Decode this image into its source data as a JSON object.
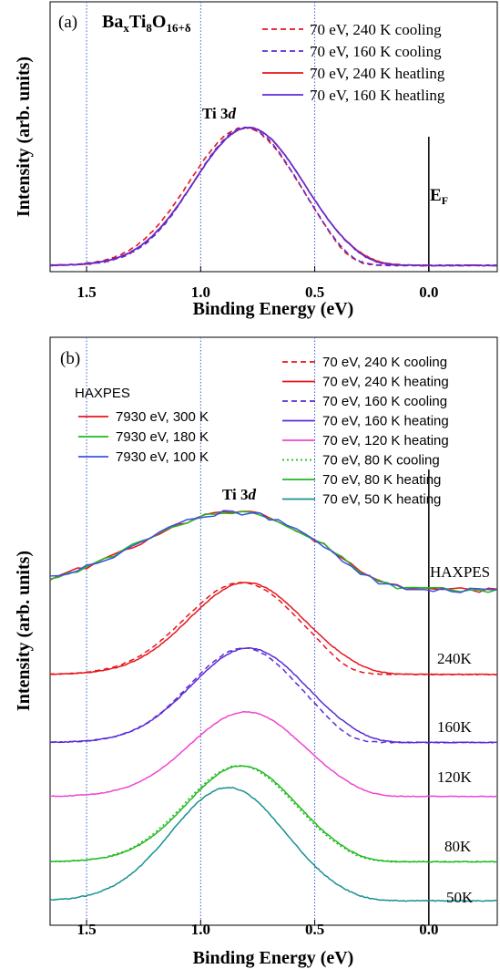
{
  "chart_data": [
    {
      "panel": "(a)",
      "type": "line",
      "title": "BaₓTi₈O₁₆₊δ",
      "title_parts": {
        "a": "Ba",
        "b": "x",
        "c": "Ti",
        "d": "8",
        "e": "O",
        "f": "16+δ"
      },
      "xlabel": "Binding Energy (eV)",
      "ylabel": "Intensity (arb. units)",
      "xlim": [
        1.66,
        -0.3
      ],
      "x_reversed": true,
      "x_ticks": [
        "1.5",
        "1.0",
        "0.5",
        "0.0"
      ],
      "x_tick_values": [
        1.5,
        1.0,
        0.5,
        0.0
      ],
      "reference_lines": [
        1.5,
        1.0,
        0.5
      ],
      "fermi_line": 0.0,
      "peak_label": {
        "main": "Ti 3",
        "italic": "d"
      },
      "fermi_label": {
        "main": "E",
        "sub": "F"
      },
      "legend_position": "top-right",
      "series": [
        {
          "name": "70 eV, 240 K cooling",
          "color": "#e8141b",
          "dash": true,
          "sigma": 0.24,
          "center": 0.81,
          "cutoff": 0.36,
          "edge_width": 0.05
        },
        {
          "name": "70 eV, 160 K cooling",
          "color": "#5b2bd6",
          "dash": true,
          "sigma": 0.23,
          "center": 0.8,
          "cutoff": 0.34,
          "edge_width": 0.05
        },
        {
          "name": "70 eV, 240 K heatling",
          "color": "#e8141b",
          "dash": false,
          "sigma": 0.24,
          "center": 0.79,
          "cutoff": 0.22,
          "edge_width": 0.07
        },
        {
          "name": "70 eV, 160 K heatling",
          "color": "#5b2bd6",
          "dash": false,
          "sigma": 0.24,
          "center": 0.79,
          "cutoff": 0.25,
          "edge_width": 0.06
        }
      ]
    },
    {
      "panel": "(b)",
      "type": "line",
      "xlabel": "Binding Energy (eV)",
      "ylabel": "Intensity (arb. units)",
      "xlim": [
        1.66,
        -0.3
      ],
      "x_reversed": true,
      "x_ticks": [
        "1.5",
        "1.0",
        "0.5",
        "0.0"
      ],
      "x_tick_values": [
        1.5,
        1.0,
        0.5,
        0.0
      ],
      "reference_lines": [
        1.5,
        1.0,
        0.5
      ],
      "fermi_line": 0.0,
      "peak_label": {
        "main": "Ti 3",
        "italic": "d"
      },
      "haxpes_legend_title": "HAXPES",
      "haxpes_series": [
        {
          "name": "7930 eV, 300 K",
          "color": "#e8141b"
        },
        {
          "name": "7930 eV, 180 K",
          "color": "#1fba1f"
        },
        {
          "name": "7930 eV, 100 K",
          "color": "#3b52e6"
        }
      ],
      "series": [
        {
          "name": "70 eV, 240 K cooling",
          "color": "#e8141b",
          "dash": true
        },
        {
          "name": "70 eV, 240 K heating",
          "color": "#e8141b",
          "dash": false
        },
        {
          "name": "70 eV, 160 K cooling",
          "color": "#5b2bd6",
          "dash": true
        },
        {
          "name": "70 eV, 160 K heating",
          "color": "#5b2bd6",
          "dash": false
        },
        {
          "name": "70 eV, 120 K heating",
          "color": "#ee44d2",
          "dash": false
        },
        {
          "name": "70 eV, 80 K cooling",
          "color": "#1fba1f",
          "dash": "dot"
        },
        {
          "name": "70 eV, 80 K heating",
          "color": "#1fba1f",
          "dash": false
        },
        {
          "name": "70 eV, 50 K heating",
          "color": "#16918f",
          "dash": false
        }
      ],
      "stack_labels": [
        "HAXPES",
        "240K",
        "160K",
        "120K",
        "80K",
        "50K"
      ]
    }
  ]
}
